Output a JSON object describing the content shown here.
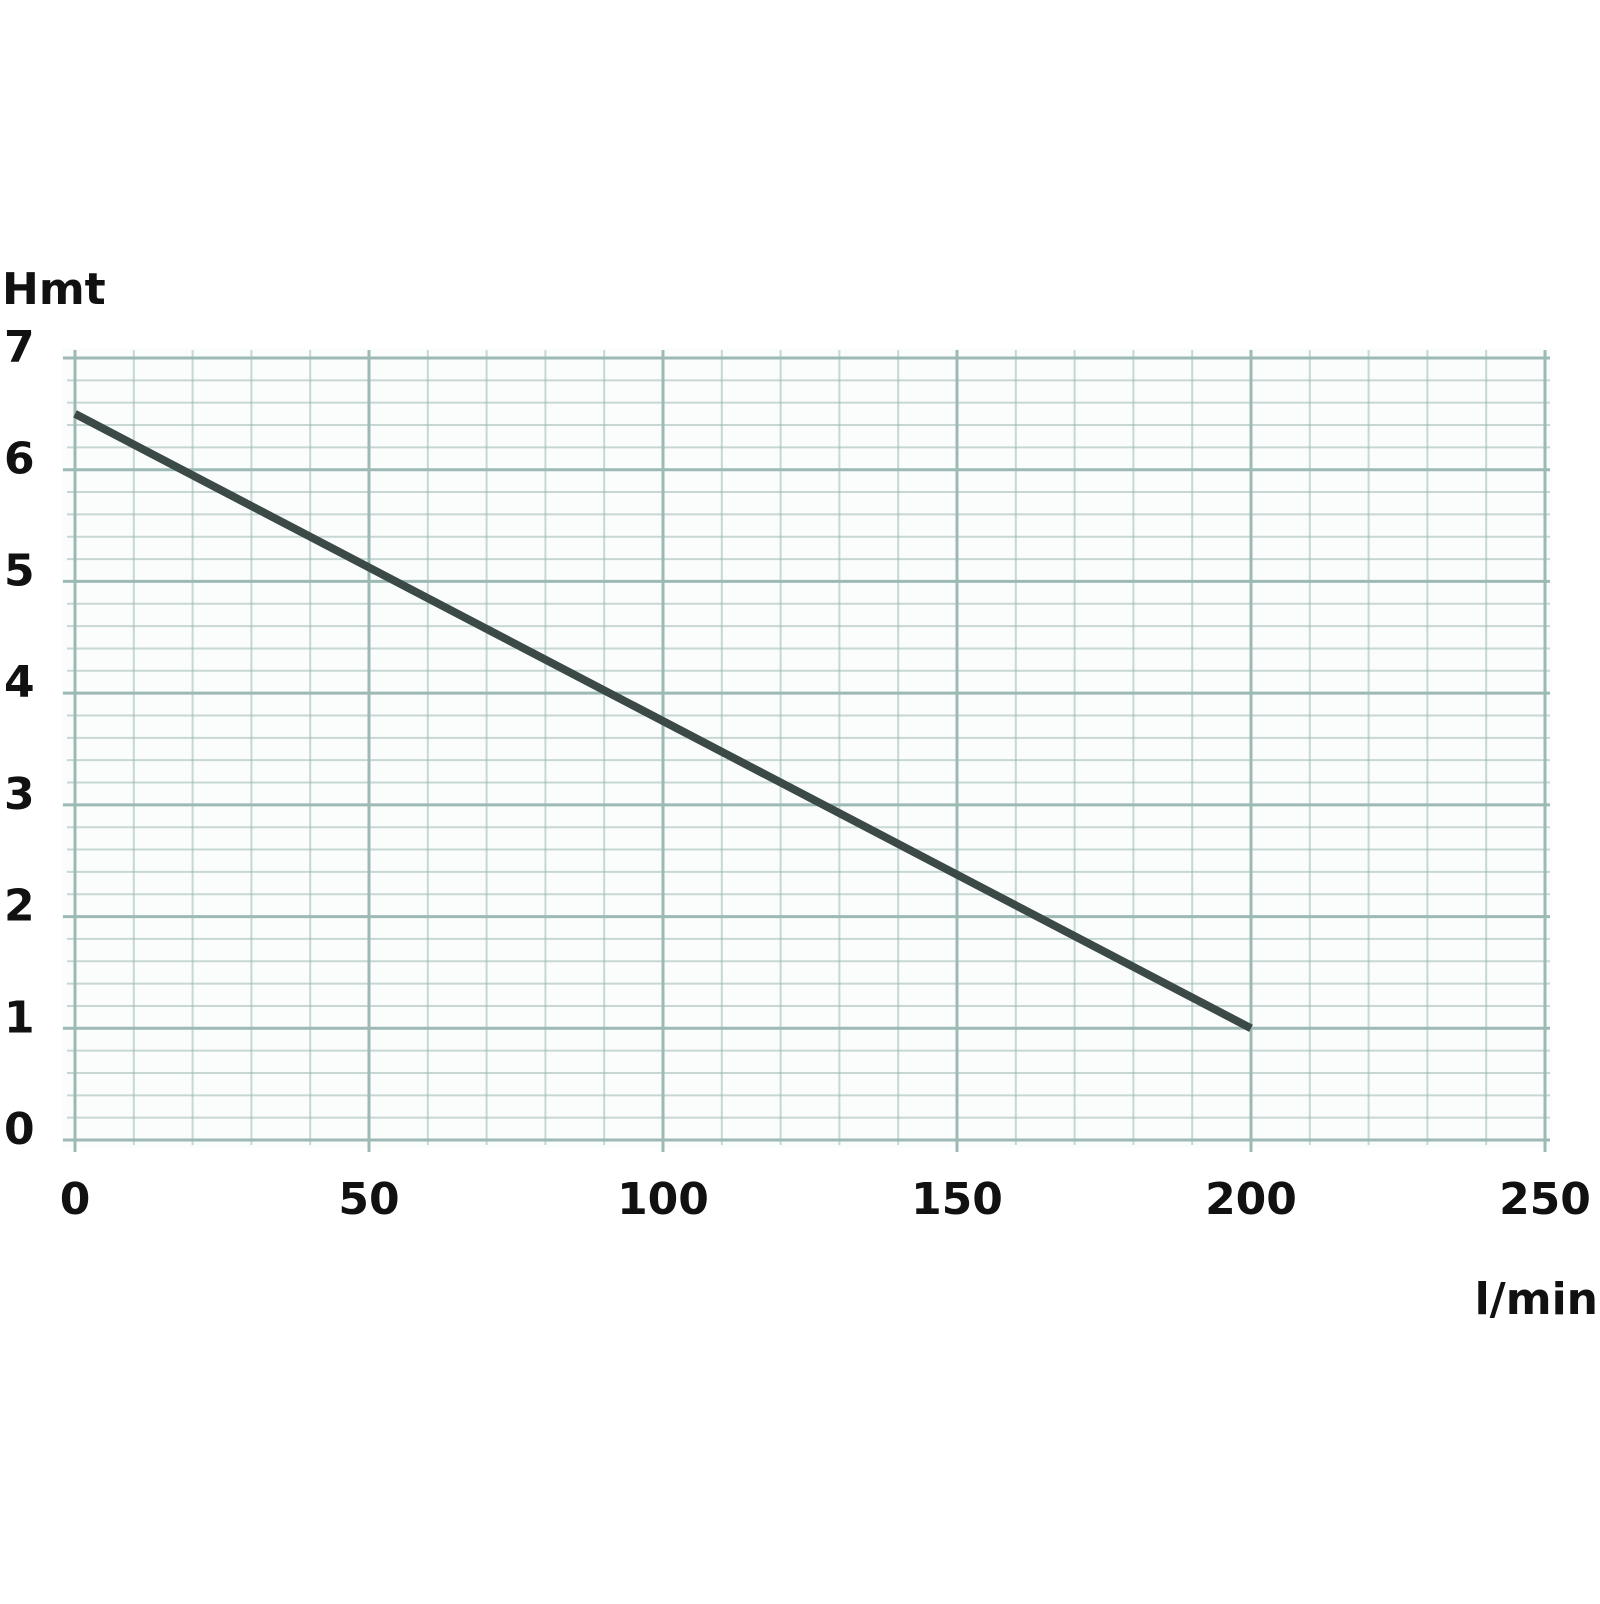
{
  "chart_data": {
    "type": "line",
    "y_label": "Hmt",
    "x_label": "l/min",
    "x": [
      0,
      200
    ],
    "series": [
      {
        "color": "#3b4a47",
        "values": [
          6.5,
          1
        ]
      }
    ],
    "xlim": [
      0,
      250
    ],
    "xticks": [
      0,
      50,
      100,
      150,
      200,
      250
    ],
    "ylim": [
      0,
      7
    ],
    "yticks": [
      0,
      1,
      2,
      3,
      4,
      5,
      6,
      7
    ],
    "grid": true,
    "grid_color": "#9cb9b5"
  }
}
